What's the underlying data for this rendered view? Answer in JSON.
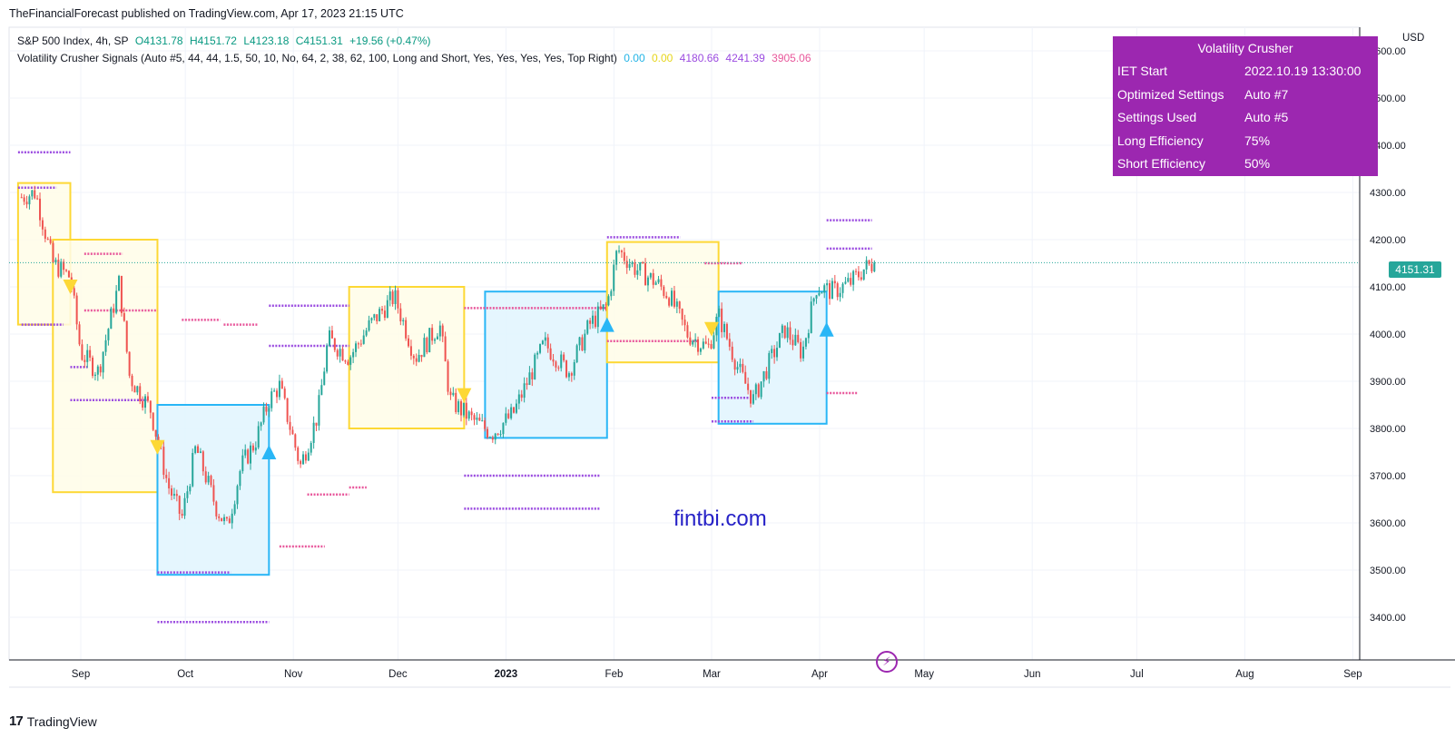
{
  "header": {
    "published": "TheFinancialForecast published on TradingView.com, Apr 17, 2023 21:15 UTC"
  },
  "legend": {
    "symbol": "S&P 500 Index, 4h, SP",
    "open": "O4131.78",
    "high": "H4151.72",
    "low": "L4123.18",
    "close": "C4151.31",
    "change": "+19.56 (+0.47%)",
    "indicator": "Volatility Crusher Signals (Auto #5, 44, 44, 1.5, 50, 10, No, 64, 2, 38, 62, 100, Long and Short, Yes, Yes, Yes, Yes, Top Right)",
    "values": [
      "0.00",
      "0.00",
      "4180.66",
      "4241.39",
      "3905.06"
    ]
  },
  "infobox": {
    "title": "Volatility Crusher",
    "rows": [
      {
        "k": "IET Start",
        "v": "2022.10.19 13:30:00"
      },
      {
        "k": "Optimized Settings",
        "v": "Auto #7"
      },
      {
        "k": "Settings Used",
        "v": "Auto #5"
      },
      {
        "k": "Long Efficiency",
        "v": "75%"
      },
      {
        "k": "Short Efficiency",
        "v": "50%"
      }
    ]
  },
  "axis": {
    "currency": "USD",
    "last_price": "4151.31"
  },
  "watermark": "fintbi.com",
  "footer": {
    "brand": "TradingView"
  },
  "colors": {
    "up": "#26a69a",
    "down": "#ef5350",
    "long_box_border": "#29b6f6",
    "long_box_fill": "#e1f5fe",
    "short_box_border": "#fdd835",
    "short_box_fill": "#fffde7",
    "purple_dots": "#9b4be0",
    "pink_dots": "#e8579b",
    "infobox_bg": "#9c27b0"
  },
  "chart_data": {
    "type": "candlestick",
    "y_ticks": [
      "4600.00",
      "4500.00",
      "4400.00",
      "4300.00",
      "4200.00",
      "4100.00",
      "4000.00",
      "3900.00",
      "3800.00",
      "3700.00",
      "3600.00",
      "3500.00",
      "3400.00"
    ],
    "x_ticks": [
      "Sep",
      "Oct",
      "Nov",
      "Dec",
      "2023",
      "Feb",
      "Mar",
      "Apr",
      "May",
      "Jun",
      "Jul",
      "Aug",
      "Sep"
    ],
    "ylim": [
      3320,
      4660
    ],
    "last_price": 4151.31,
    "price_path": [
      {
        "d": "2022-08-15",
        "p": 4290
      },
      {
        "d": "2022-08-19",
        "p": 4300
      },
      {
        "d": "2022-08-24",
        "p": 4150
      },
      {
        "d": "2022-08-29",
        "p": 4120
      },
      {
        "d": "2022-09-01",
        "p": 3960
      },
      {
        "d": "2022-09-06",
        "p": 3920
      },
      {
        "d": "2022-09-12",
        "p": 4110
      },
      {
        "d": "2022-09-15",
        "p": 3910
      },
      {
        "d": "2022-09-21",
        "p": 3840
      },
      {
        "d": "2022-09-26",
        "p": 3680
      },
      {
        "d": "2022-09-30",
        "p": 3610
      },
      {
        "d": "2022-10-04",
        "p": 3760
      },
      {
        "d": "2022-10-10",
        "p": 3630
      },
      {
        "d": "2022-10-13",
        "p": 3590
      },
      {
        "d": "2022-10-17",
        "p": 3720
      },
      {
        "d": "2022-10-21",
        "p": 3770
      },
      {
        "d": "2022-10-25",
        "p": 3860
      },
      {
        "d": "2022-10-28",
        "p": 3890
      },
      {
        "d": "2022-11-03",
        "p": 3720
      },
      {
        "d": "2022-11-08",
        "p": 3830
      },
      {
        "d": "2022-11-11",
        "p": 3990
      },
      {
        "d": "2022-11-17",
        "p": 3950
      },
      {
        "d": "2022-11-23",
        "p": 4020
      },
      {
        "d": "2022-11-30",
        "p": 4080
      },
      {
        "d": "2022-12-06",
        "p": 3950
      },
      {
        "d": "2022-12-13",
        "p": 4020
      },
      {
        "d": "2022-12-16",
        "p": 3860
      },
      {
        "d": "2022-12-22",
        "p": 3820
      },
      {
        "d": "2022-12-28",
        "p": 3790
      },
      {
        "d": "2023-01-03",
        "p": 3830
      },
      {
        "d": "2023-01-06",
        "p": 3880
      },
      {
        "d": "2023-01-12",
        "p": 3980
      },
      {
        "d": "2023-01-19",
        "p": 3920
      },
      {
        "d": "2023-01-25",
        "p": 4020
      },
      {
        "d": "2023-01-30",
        "p": 4060
      },
      {
        "d": "2023-02-02",
        "p": 4180
      },
      {
        "d": "2023-02-07",
        "p": 4140
      },
      {
        "d": "2023-02-13",
        "p": 4110
      },
      {
        "d": "2023-02-17",
        "p": 4080
      },
      {
        "d": "2023-02-22",
        "p": 4000
      },
      {
        "d": "2023-02-28",
        "p": 3970
      },
      {
        "d": "2023-03-03",
        "p": 4040
      },
      {
        "d": "2023-03-09",
        "p": 3920
      },
      {
        "d": "2023-03-13",
        "p": 3860
      },
      {
        "d": "2023-03-17",
        "p": 3930
      },
      {
        "d": "2023-03-22",
        "p": 4010
      },
      {
        "d": "2023-03-27",
        "p": 3960
      },
      {
        "d": "2023-03-31",
        "p": 4100
      },
      {
        "d": "2023-04-05",
        "p": 4090
      },
      {
        "d": "2023-04-10",
        "p": 4110
      },
      {
        "d": "2023-04-14",
        "p": 4140
      },
      {
        "d": "2023-04-17",
        "p": 4151
      }
    ],
    "signal_boxes": [
      {
        "side": "short",
        "start": "2022-08-14",
        "end": "2022-08-29",
        "top": 4320,
        "bottom": 4020
      },
      {
        "side": "short",
        "start": "2022-08-24",
        "end": "2022-09-23",
        "top": 4200,
        "bottom": 3665
      },
      {
        "side": "long",
        "start": "2022-09-23",
        "end": "2022-10-25",
        "top": 3850,
        "bottom": 3490
      },
      {
        "side": "short",
        "start": "2022-11-17",
        "end": "2022-12-20",
        "top": 4100,
        "bottom": 3800
      },
      {
        "side": "long",
        "start": "2022-12-26",
        "end": "2023-01-30",
        "top": 4090,
        "bottom": 3780
      },
      {
        "side": "short",
        "start": "2023-01-30",
        "end": "2023-03-03",
        "top": 4195,
        "bottom": 3940
      },
      {
        "side": "long",
        "start": "2023-03-03",
        "end": "2023-04-03",
        "top": 4090,
        "bottom": 3810
      }
    ],
    "signal_arrows": [
      {
        "side": "short",
        "d": "2022-08-29",
        "p": 4100
      },
      {
        "side": "short",
        "d": "2022-09-23",
        "p": 3760
      },
      {
        "side": "long",
        "d": "2022-10-25",
        "p": 3750
      },
      {
        "side": "short",
        "d": "2022-12-20",
        "p": 3870
      },
      {
        "side": "long",
        "d": "2023-01-30",
        "p": 4020
      },
      {
        "side": "short",
        "d": "2023-03-01",
        "p": 4010
      },
      {
        "side": "long",
        "d": "2023-04-03",
        "p": 4010
      }
    ],
    "level_lines": [
      {
        "color": "purple",
        "start": "2022-08-14",
        "end": "2022-08-29",
        "p": 4385
      },
      {
        "color": "purple",
        "start": "2022-08-14",
        "end": "2022-08-25",
        "p": 4310
      },
      {
        "color": "purple",
        "start": "2022-08-15",
        "end": "2022-08-27",
        "p": 4020
      },
      {
        "color": "purple",
        "start": "2022-08-29",
        "end": "2022-09-03",
        "p": 3930
      },
      {
        "color": "purple",
        "start": "2022-08-29",
        "end": "2022-09-20",
        "p": 3860
      },
      {
        "color": "purple",
        "start": "2022-09-23",
        "end": "2022-10-14",
        "p": 3495
      },
      {
        "color": "purple",
        "start": "2022-09-23",
        "end": "2022-10-25",
        "p": 3390
      },
      {
        "color": "purple",
        "start": "2022-10-25",
        "end": "2022-11-17",
        "p": 4060
      },
      {
        "color": "purple",
        "start": "2022-10-25",
        "end": "2022-11-17",
        "p": 3975
      },
      {
        "color": "purple",
        "start": "2022-12-20",
        "end": "2023-01-28",
        "p": 3700
      },
      {
        "color": "purple",
        "start": "2022-12-20",
        "end": "2023-01-28",
        "p": 3630
      },
      {
        "color": "purple",
        "start": "2023-01-30",
        "end": "2023-02-20",
        "p": 4205
      },
      {
        "color": "purple",
        "start": "2023-03-01",
        "end": "2023-03-13",
        "p": 3865
      },
      {
        "color": "purple",
        "start": "2023-03-01",
        "end": "2023-03-13",
        "p": 3815
      },
      {
        "color": "purple",
        "start": "2023-04-03",
        "end": "2023-04-16",
        "p": 4241
      },
      {
        "color": "purple",
        "start": "2023-04-03",
        "end": "2023-04-16",
        "p": 4181
      },
      {
        "color": "pink",
        "start": "2022-09-02",
        "end": "2022-09-13",
        "p": 4170
      },
      {
        "color": "pink",
        "start": "2022-09-02",
        "end": "2022-09-23",
        "p": 4050
      },
      {
        "color": "pink",
        "start": "2022-09-30",
        "end": "2022-10-11",
        "p": 4030
      },
      {
        "color": "pink",
        "start": "2022-10-12",
        "end": "2022-10-22",
        "p": 4020
      },
      {
        "color": "pink",
        "start": "2022-10-28",
        "end": "2022-11-10",
        "p": 3550
      },
      {
        "color": "pink",
        "start": "2022-11-05",
        "end": "2022-11-17",
        "p": 3660
      },
      {
        "color": "pink",
        "start": "2022-11-17",
        "end": "2022-11-22",
        "p": 3675
      },
      {
        "color": "pink",
        "start": "2022-12-20",
        "end": "2023-01-30",
        "p": 4055
      },
      {
        "color": "pink",
        "start": "2023-01-30",
        "end": "2023-02-25",
        "p": 3985
      },
      {
        "color": "pink",
        "start": "2023-02-27",
        "end": "2023-03-10",
        "p": 4150
      },
      {
        "color": "pink",
        "start": "2023-04-03",
        "end": "2023-04-12",
        "p": 3875
      }
    ]
  }
}
